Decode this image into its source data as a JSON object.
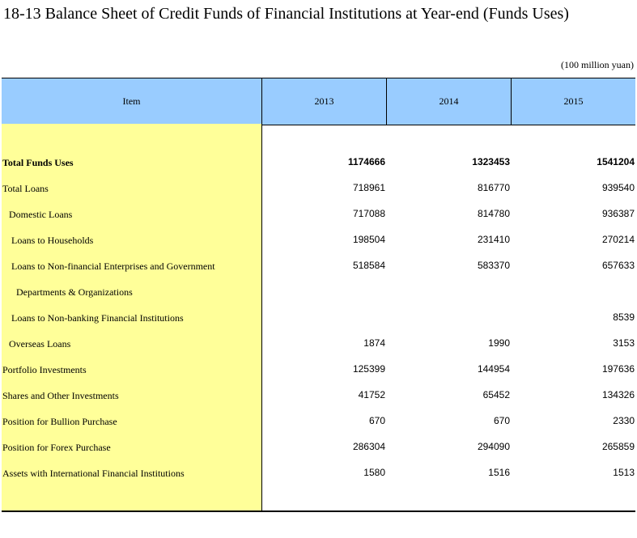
{
  "title": "18-13  Balance Sheet of Credit Funds of Financial Institutions at Year-end (Funds Uses)",
  "unit": "(100 million yuan)",
  "header": {
    "item": "Item",
    "y1": "2013",
    "y2": "2014",
    "y3": "2015"
  },
  "rows": [
    {
      "label": "Total Funds Uses",
      "v1": "1174666",
      "v2": "1323453",
      "v3": "1541204"
    },
    {
      "label": "Total Loans",
      "v1": "718961",
      "v2": "816770",
      "v3": "939540"
    },
    {
      "label": "Domestic Loans",
      "v1": "717088",
      "v2": "814780",
      "v3": "936387"
    },
    {
      "label": "Loans to Households",
      "v1": "198504",
      "v2": "231410",
      "v3": "270214"
    },
    {
      "label": "Loans to Non-financial Enterprises and Government",
      "v1": "518584",
      "v2": "583370",
      "v3": "657633"
    },
    {
      "label": "Departments & Organizations",
      "v1": "",
      "v2": "",
      "v3": ""
    },
    {
      "label": "Loans to Non-banking Financial Institutions",
      "v1": "",
      "v2": "",
      "v3": "8539"
    },
    {
      "label": "Overseas Loans",
      "v1": "1874",
      "v2": "1990",
      "v3": "3153"
    },
    {
      "label": "Portfolio Investments",
      "v1": "125399",
      "v2": "144954",
      "v3": "197636"
    },
    {
      "label": "Shares and Other Investments",
      "v1": "41752",
      "v2": "65452",
      "v3": "134326"
    },
    {
      "label": "Position for Bullion Purchase",
      "v1": "670",
      "v2": "670",
      "v3": "2330"
    },
    {
      "label": "Position for Forex Purchase",
      "v1": "286304",
      "v2": "294090",
      "v3": "265859"
    },
    {
      "label": "Assets with International Financial Institutions",
      "v1": "1580",
      "v2": "1516",
      "v3": "1513"
    }
  ],
  "colors": {
    "header_bg": "#99ccff",
    "item_column_bg": "#ffff99"
  }
}
